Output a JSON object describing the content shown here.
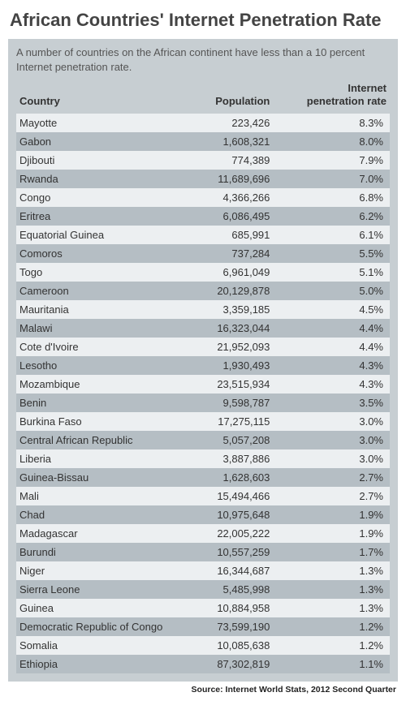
{
  "title": "African Countries' Internet Penetration Rate",
  "subtitle": "A number of countries on the African continent have less than a 10 percent Internet penetration rate.",
  "source": "Source: Internet World Stats, 2012 Second Quarter",
  "table": {
    "type": "table",
    "columns": [
      {
        "key": "country",
        "label": "Country",
        "align": "left"
      },
      {
        "key": "population",
        "label": "Population",
        "align": "right"
      },
      {
        "key": "rate",
        "label_line1": "Internet",
        "label_line2": "penetration rate",
        "align": "right"
      }
    ],
    "rows": [
      {
        "country": "Mayotte",
        "population": "223,426",
        "rate": "8.3%"
      },
      {
        "country": "Gabon",
        "population": "1,608,321",
        "rate": "8.0%"
      },
      {
        "country": "Djibouti",
        "population": "774,389",
        "rate": "7.9%"
      },
      {
        "country": "Rwanda",
        "population": "11,689,696",
        "rate": "7.0%"
      },
      {
        "country": "Congo",
        "population": "4,366,266",
        "rate": "6.8%"
      },
      {
        "country": "Eritrea",
        "population": "6,086,495",
        "rate": "6.2%"
      },
      {
        "country": "Equatorial Guinea",
        "population": "685,991",
        "rate": "6.1%"
      },
      {
        "country": "Comoros",
        "population": "737,284",
        "rate": "5.5%"
      },
      {
        "country": "Togo",
        "population": "6,961,049",
        "rate": "5.1%"
      },
      {
        "country": "Cameroon",
        "population": "20,129,878",
        "rate": "5.0%"
      },
      {
        "country": "Mauritania",
        "population": "3,359,185",
        "rate": "4.5%"
      },
      {
        "country": "Malawi",
        "population": "16,323,044",
        "rate": "4.4%"
      },
      {
        "country": "Cote d'Ivoire",
        "population": "21,952,093",
        "rate": "4.4%"
      },
      {
        "country": "Lesotho",
        "population": "1,930,493",
        "rate": "4.3%"
      },
      {
        "country": "Mozambique",
        "population": "23,515,934",
        "rate": "4.3%"
      },
      {
        "country": "Benin",
        "population": "9,598,787",
        "rate": "3.5%"
      },
      {
        "country": "Burkina Faso",
        "population": "17,275,115",
        "rate": "3.0%"
      },
      {
        "country": "Central African Republic",
        "population": "5,057,208",
        "rate": "3.0%"
      },
      {
        "country": "Liberia",
        "population": "3,887,886",
        "rate": "3.0%"
      },
      {
        "country": "Guinea-Bissau",
        "population": "1,628,603",
        "rate": "2.7%"
      },
      {
        "country": "Mali",
        "population": "15,494,466",
        "rate": "2.7%"
      },
      {
        "country": "Chad",
        "population": "10,975,648",
        "rate": "1.9%"
      },
      {
        "country": "Madagascar",
        "population": "22,005,222",
        "rate": "1.9%"
      },
      {
        "country": "Burundi",
        "population": "10,557,259",
        "rate": "1.7%"
      },
      {
        "country": "Niger",
        "population": "16,344,687",
        "rate": "1.3%"
      },
      {
        "country": "Sierra Leone",
        "population": "5,485,998",
        "rate": "1.3%"
      },
      {
        "country": "Guinea",
        "population": "10,884,958",
        "rate": "1.3%"
      },
      {
        "country": "Democratic Republic of Congo",
        "population": "73,599,190",
        "rate": "1.2%"
      },
      {
        "country": "Somalia",
        "population": "10,085,638",
        "rate": "1.2%"
      },
      {
        "country": "Ethiopia",
        "population": "87,302,819",
        "rate": "1.1%"
      }
    ],
    "styling": {
      "title_fontsize": 22,
      "title_color": "#444444",
      "subtitle_fontsize": 13,
      "subtitle_color": "#555555",
      "header_bg": "#c7ced2",
      "row_odd_bg": "#eceff1",
      "row_even_bg": "#b5bec4",
      "wrap_bg": "#c7ced2",
      "text_color": "#333333",
      "body_fontsize": 13,
      "source_fontsize": 10.5,
      "font_family": "Arial, Helvetica, sans-serif"
    }
  }
}
